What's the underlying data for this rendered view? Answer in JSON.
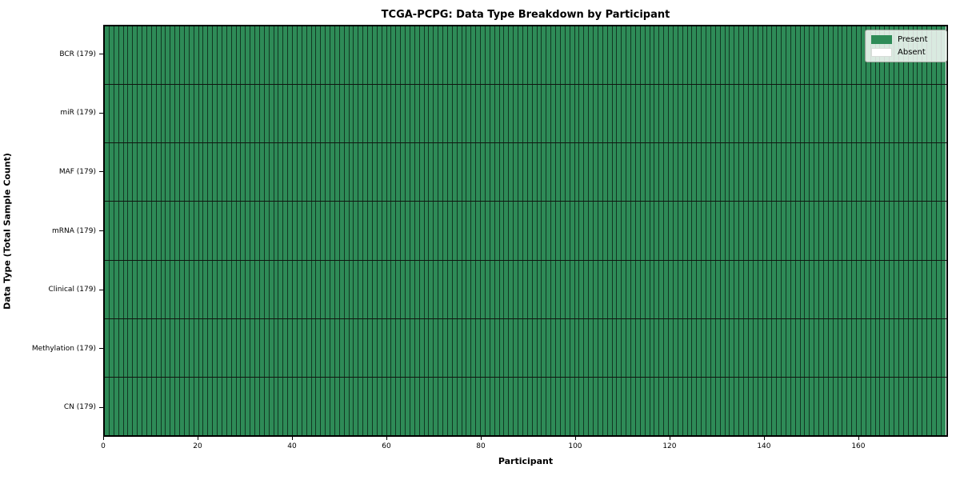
{
  "chart_data": {
    "type": "heatmap",
    "title": "TCGA-PCPG: Data Type Breakdown by Participant",
    "xlabel": "Participant",
    "ylabel": "Data Type (Total Sample Count)",
    "n_participants": 179,
    "x_range": [
      0,
      179
    ],
    "x_ticks": [
      0,
      20,
      40,
      60,
      80,
      100,
      120,
      140,
      160
    ],
    "rows": [
      {
        "label": "BCR (179)",
        "data_type": "BCR",
        "total_samples": 179,
        "present_count": 179,
        "absent_count": 0
      },
      {
        "label": "miR (179)",
        "data_type": "miR",
        "total_samples": 179,
        "present_count": 179,
        "absent_count": 0
      },
      {
        "label": "MAF (179)",
        "data_type": "MAF",
        "total_samples": 179,
        "present_count": 179,
        "absent_count": 0
      },
      {
        "label": "mRNA (179)",
        "data_type": "mRNA",
        "total_samples": 179,
        "present_count": 179,
        "absent_count": 0
      },
      {
        "label": "Clinical (179)",
        "data_type": "Clinical",
        "total_samples": 179,
        "present_count": 179,
        "absent_count": 0
      },
      {
        "label": "Methylation (179)",
        "data_type": "Methylation",
        "total_samples": 179,
        "present_count": 179,
        "absent_count": 0
      },
      {
        "label": "CN (179)",
        "data_type": "CN",
        "total_samples": 179,
        "present_count": 179,
        "absent_count": 0
      }
    ],
    "legend": {
      "position": "upper right",
      "entries": [
        {
          "label": "Present",
          "color": "#2e8b57"
        },
        {
          "label": "Absent",
          "color": "#ffffff"
        }
      ]
    },
    "colors": {
      "present": "#2e8b57",
      "absent": "#ffffff",
      "cell_edge": "rgba(0,0,0,0.60)",
      "row_divider": "#101510",
      "spine": "#000000"
    },
    "grid": false
  }
}
